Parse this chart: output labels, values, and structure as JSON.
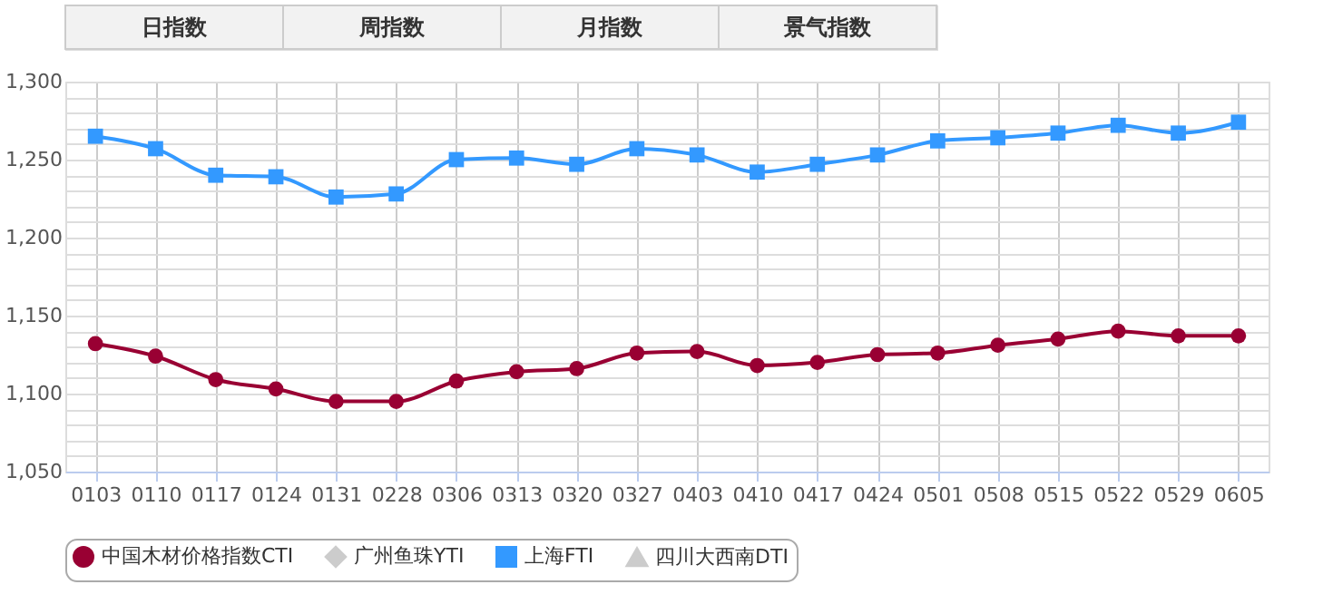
{
  "chart_data": {
    "type": "line",
    "annotations": [
      "日指数",
      "周指数",
      "月指数",
      "景气指数"
    ],
    "categories": [
      "0103",
      "0110",
      "0117",
      "0124",
      "0131",
      "0228",
      "0306",
      "0313",
      "0320",
      "0327",
      "0403",
      "0410",
      "0417",
      "0424",
      "0501",
      "0508",
      "0515",
      "0522",
      "0529",
      "0605"
    ],
    "series": [
      {
        "name": "中国木材价格指数CTI",
        "color": "#990033",
        "marker": "circle",
        "values": [
          1132,
          1124,
          1109,
          1103,
          1095,
          1095,
          1108,
          1114,
          1116,
          1126,
          1127,
          1118,
          1120,
          1125,
          1126,
          1131,
          1135,
          1140,
          1137,
          1137
        ]
      },
      {
        "name": "广州鱼珠YTI",
        "color": "#cccccc",
        "marker": "diamond",
        "values": [
          null,
          null,
          null,
          null,
          null,
          null,
          null,
          null,
          null,
          null,
          null,
          null,
          null,
          null,
          null,
          null,
          null,
          null,
          null,
          null
        ]
      },
      {
        "name": "上海FTI",
        "color": "#3399ff",
        "marker": "square",
        "values": [
          1265,
          1257,
          1240,
          1239,
          1226,
          1228,
          1250,
          1251,
          1247,
          1257,
          1253,
          1242,
          1247,
          1253,
          1262,
          1264,
          1267,
          1272,
          1267,
          1274
        ]
      },
      {
        "name": "四川大西南DTI",
        "color": "#cccccc",
        "marker": "triangle",
        "values": [
          null,
          null,
          null,
          null,
          null,
          null,
          null,
          null,
          null,
          null,
          null,
          null,
          null,
          null,
          null,
          null,
          null,
          null,
          null,
          null
        ]
      }
    ],
    "ylim": [
      1050,
      1300
    ],
    "yticks": [
      {
        "value": 1050,
        "label": "1,050"
      },
      {
        "value": 1060,
        "label": null
      },
      {
        "value": 1070,
        "label": null
      },
      {
        "value": 1080,
        "label": null
      },
      {
        "value": 1090,
        "label": null
      },
      {
        "value": 1100,
        "label": "1,100"
      },
      {
        "value": 1110,
        "label": null
      },
      {
        "value": 1120,
        "label": null
      },
      {
        "value": 1130,
        "label": null
      },
      {
        "value": 1140,
        "label": null
      },
      {
        "value": 1150,
        "label": "1,150"
      },
      {
        "value": 1160,
        "label": null
      },
      {
        "value": 1170,
        "label": null
      },
      {
        "value": 1180,
        "label": null
      },
      {
        "value": 1190,
        "label": null
      },
      {
        "value": 1200,
        "label": "1,200"
      },
      {
        "value": 1210,
        "label": null
      },
      {
        "value": 1220,
        "label": null
      },
      {
        "value": 1230,
        "label": null
      },
      {
        "value": 1240,
        "label": null
      },
      {
        "value": 1250,
        "label": "1,250"
      },
      {
        "value": 1260,
        "label": null
      },
      {
        "value": 1270,
        "label": null
      },
      {
        "value": 1280,
        "label": null
      },
      {
        "value": 1290,
        "label": null
      },
      {
        "value": 1300,
        "label": "1,300"
      }
    ],
    "grid": true,
    "legend": "bottom",
    "line_style": "solid"
  }
}
